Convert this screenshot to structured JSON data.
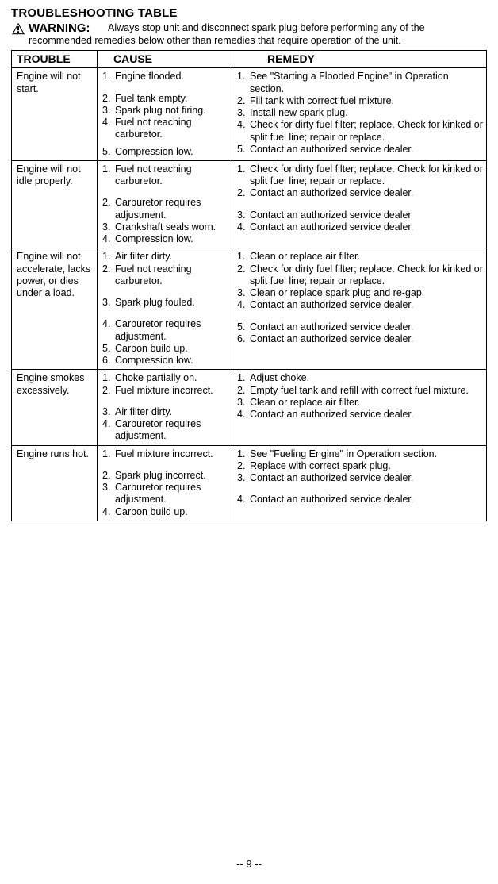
{
  "title": "TROUBLESHOOTING TABLE",
  "warning_label": "WARNING:",
  "warning_text_1": "Always stop unit and disconnect spark plug before performing any of the",
  "warning_text_2": "recommended remedies below other than remedies that require operation of the unit.",
  "headers": {
    "trouble": "TROUBLE",
    "cause": "CAUSE",
    "remedy": "REMEDY"
  },
  "rows": [
    {
      "trouble": "Engine will not start.",
      "causes": [
        {
          "n": "1.",
          "t": "Engine flooded.",
          "cls": ""
        },
        {
          "n": "2.",
          "t": "Fuel tank empty.",
          "cls": "sp"
        },
        {
          "n": "3.",
          "t": "Spark plug not firing.",
          "cls": ""
        },
        {
          "n": "4.",
          "t": "Fuel not reaching carburetor.",
          "cls": ""
        },
        {
          "n": "5.",
          "t": "Compression low.",
          "cls": "hsp"
        }
      ],
      "remedies": [
        {
          "n": "1.",
          "t": "See \"Starting a Flooded Engine\" in Operation section.",
          "cls": ""
        },
        {
          "n": "2.",
          "t": "Fill tank with correct fuel mixture.",
          "cls": ""
        },
        {
          "n": "3.",
          "t": "Install new spark plug.",
          "cls": ""
        },
        {
          "n": "4.",
          "t": "Check for dirty fuel filter; replace. Check for kinked or split fuel line; repair or replace.",
          "cls": ""
        },
        {
          "n": "5.",
          "t": "Contact an authorized service dealer.",
          "cls": ""
        }
      ]
    },
    {
      "trouble": "Engine will not idle properly.",
      "causes": [
        {
          "n": "1.",
          "t": "Fuel not reaching carburetor.",
          "cls": ""
        },
        {
          "n": "2.",
          "t": "Carburetor requires adjustment.",
          "cls": "sp"
        },
        {
          "n": "3.",
          "t": "Crankshaft seals worn.",
          "cls": ""
        },
        {
          "n": "4.",
          "t": "Compression low.",
          "cls": ""
        }
      ],
      "remedies": [
        {
          "n": "1.",
          "t": "Check for dirty fuel filter; replace. Check for kinked or split fuel line; repair or replace.",
          "cls": ""
        },
        {
          "n": "2.",
          "t": "Contact an authorized service dealer.",
          "cls": ""
        },
        {
          "n": "3.",
          "t": "Contact an authorized service dealer",
          "cls": "sp"
        },
        {
          "n": "4.",
          "t": "Contact an authorized service dealer.",
          "cls": ""
        }
      ]
    },
    {
      "trouble": "Engine will not accelerate, lacks power, or dies under a load.",
      "causes": [
        {
          "n": "1.",
          "t": "Air filter dirty.",
          "cls": ""
        },
        {
          "n": "2.",
          "t": "Fuel not reaching carburetor.",
          "cls": ""
        },
        {
          "n": "3.",
          "t": "Spark plug fouled.",
          "cls": "sp"
        },
        {
          "n": "4.",
          "t": "Carburetor requires adjustment.",
          "cls": "sp"
        },
        {
          "n": "5.",
          "t": "Carbon build up.",
          "cls": ""
        },
        {
          "n": "6.",
          "t": "Compression low.",
          "cls": ""
        }
      ],
      "remedies": [
        {
          "n": "1.",
          "t": "Clean or replace air filter.",
          "cls": ""
        },
        {
          "n": "2.",
          "t": "Check for dirty fuel filter; replace. Check for kinked or split fuel line; repair or replace.",
          "cls": ""
        },
        {
          "n": "3.",
          "t": "Clean or replace spark plug and re-gap.",
          "cls": ""
        },
        {
          "n": "4.",
          "t": "Contact an authorized service dealer.",
          "cls": ""
        },
        {
          "n": "5.",
          "t": "Contact an authorized service dealer.",
          "cls": "sp"
        },
        {
          "n": "6.",
          "t": "Contact an authorized service dealer.",
          "cls": ""
        }
      ]
    },
    {
      "trouble": "Engine smokes excessively.",
      "causes": [
        {
          "n": "1.",
          "t": "Choke partially on.",
          "cls": ""
        },
        {
          "n": "2.",
          "t": "Fuel mixture incorrect.",
          "cls": ""
        },
        {
          "n": "3.",
          "t": "Air filter dirty.",
          "cls": "sp"
        },
        {
          "n": "4.",
          "t": "Carburetor requires adjustment.",
          "cls": ""
        }
      ],
      "remedies": [
        {
          "n": "1.",
          "t": "Adjust choke.",
          "cls": ""
        },
        {
          "n": "2.",
          "t": "Empty fuel tank and refill with correct fuel mixture.",
          "cls": ""
        },
        {
          "n": "3.",
          "t": "Clean or replace air filter.",
          "cls": ""
        },
        {
          "n": "4.",
          "t": "Contact an authorized service dealer.",
          "cls": ""
        }
      ]
    },
    {
      "trouble": "Engine runs hot.",
      "causes": [
        {
          "n": "1.",
          "t": "Fuel mixture incorrect.",
          "cls": ""
        },
        {
          "n": "2.",
          "t": "Spark plug incorrect.",
          "cls": "sp"
        },
        {
          "n": "3.",
          "t": "Carburetor requires adjustment.",
          "cls": ""
        },
        {
          "n": "4.",
          "t": "Carbon build up.",
          "cls": ""
        }
      ],
      "remedies": [
        {
          "n": "1.",
          "t": "See \"Fueling Engine\" in Operation section.",
          "cls": ""
        },
        {
          "n": "2.",
          "t": "Replace with correct spark plug.",
          "cls": ""
        },
        {
          "n": "3.",
          "t": "Contact an authorized service dealer.",
          "cls": ""
        },
        {
          "n": "4.",
          "t": "Contact an authorized service dealer.",
          "cls": "sp"
        }
      ]
    }
  ],
  "page_number": "-- 9 --"
}
